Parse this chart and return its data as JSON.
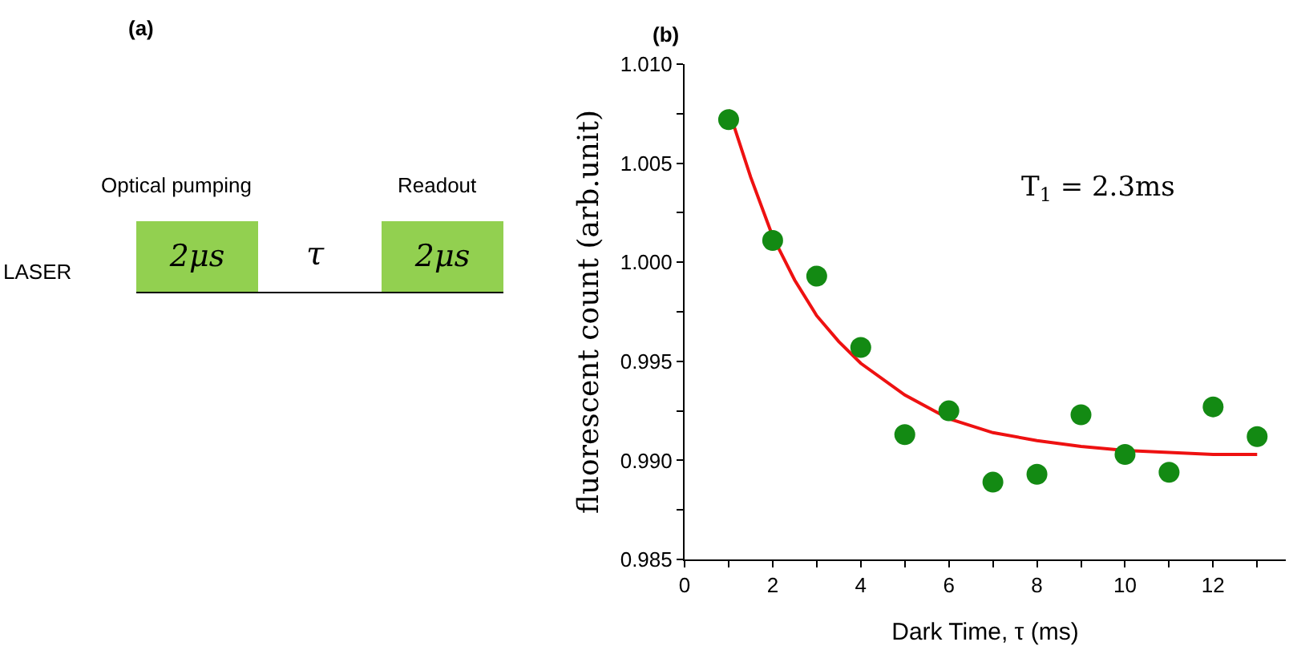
{
  "chart_data": [
    {
      "type": "other",
      "title": "(a)",
      "annotations": [
        "Optical pumping",
        "Readout",
        "LASER",
        "2μs",
        "τ",
        "2μs"
      ]
    },
    {
      "type": "scatter",
      "title": "(b)",
      "xlabel": "Dark Time, τ (ms)",
      "ylabel": "fluorescent count (arb.unit)",
      "annotations": [
        "T$_{1}$ = 2.3ms"
      ],
      "xlim": [
        0,
        13.65
      ],
      "xticks": [
        0,
        {
          "value": 1,
          "label": null
        },
        2,
        {
          "value": 3,
          "label": null
        },
        4,
        {
          "value": 5,
          "label": null
        },
        6,
        {
          "value": 7,
          "label": null
        },
        8,
        {
          "value": 9,
          "label": null
        },
        10,
        {
          "value": 11,
          "label": null
        },
        12,
        {
          "value": 13,
          "label": null
        }
      ],
      "ylim": [
        0.985,
        1.01
      ],
      "yticks": [
        0.985,
        {
          "value": 0.9875,
          "label": null
        },
        {
          "value": 0.99,
          "label": "0.990"
        },
        {
          "value": 0.9925,
          "label": null
        },
        0.995,
        {
          "value": 0.9975,
          "label": null
        },
        {
          "value": 1.0,
          "label": "1.000"
        },
        {
          "value": 1.0025,
          "label": null
        },
        1.005,
        {
          "value": 1.0075,
          "label": null
        },
        {
          "value": 1.01,
          "label": "1.010"
        }
      ],
      "grid": false,
      "series": [
        {
          "type": "line",
          "color": "#ee1111",
          "marker": "none",
          "line_style": "solid",
          "x": [
            1,
            1.5,
            2,
            2.5,
            3,
            3.5,
            4,
            5,
            6,
            7,
            8,
            9,
            10,
            11,
            12,
            13
          ],
          "values": [
            1.0077,
            1.0043,
            1.0013,
            0.9991,
            0.9973,
            0.996,
            0.9949,
            0.9933,
            0.9921,
            0.9914,
            0.991,
            0.9907,
            0.9905,
            0.9904,
            0.9903,
            0.9903
          ]
        },
        {
          "type": "scatter",
          "color": "#138a13",
          "marker": "circle",
          "x": [
            1,
            2,
            3,
            4,
            5,
            6,
            7,
            8,
            9,
            10,
            11,
            12,
            13
          ],
          "values": [
            1.0072,
            1.0011,
            0.9993,
            0.9957,
            0.9913,
            0.9925,
            0.9889,
            0.9893,
            0.9923,
            0.9903,
            0.9894,
            0.9927,
            0.9912
          ]
        }
      ]
    }
  ]
}
